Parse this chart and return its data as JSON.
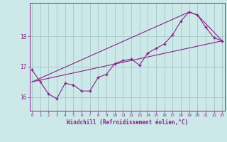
{
  "xlabel": "Windchill (Refroidissement éolien,°C)",
  "bg_color": "#cce8e8",
  "grid_color": "#aacccc",
  "line_color": "#882288",
  "x_ticks": [
    0,
    1,
    2,
    3,
    4,
    5,
    6,
    7,
    8,
    9,
    10,
    11,
    12,
    13,
    14,
    15,
    16,
    17,
    18,
    19,
    20,
    21,
    22,
    23
  ],
  "y_ticks": [
    16,
    17,
    18
  ],
  "xlim": [
    -0.3,
    23.3
  ],
  "ylim": [
    15.55,
    19.1
  ],
  "series1_x": [
    0,
    1,
    2,
    3,
    4,
    5,
    6,
    7,
    8,
    9,
    10,
    11,
    12,
    13,
    14,
    15,
    16,
    17,
    18,
    19,
    20,
    21,
    22,
    23
  ],
  "series1_y": [
    16.9,
    16.5,
    16.1,
    15.95,
    16.45,
    16.4,
    16.2,
    16.2,
    16.65,
    16.75,
    17.1,
    17.2,
    17.25,
    17.05,
    17.45,
    17.6,
    17.75,
    18.05,
    18.5,
    18.8,
    18.7,
    18.3,
    17.95,
    17.85
  ],
  "series2_x": [
    0,
    23
  ],
  "series2_y": [
    16.5,
    17.85
  ],
  "series3_x": [
    0,
    19,
    20,
    23
  ],
  "series3_y": [
    16.5,
    18.8,
    18.7,
    17.85
  ]
}
